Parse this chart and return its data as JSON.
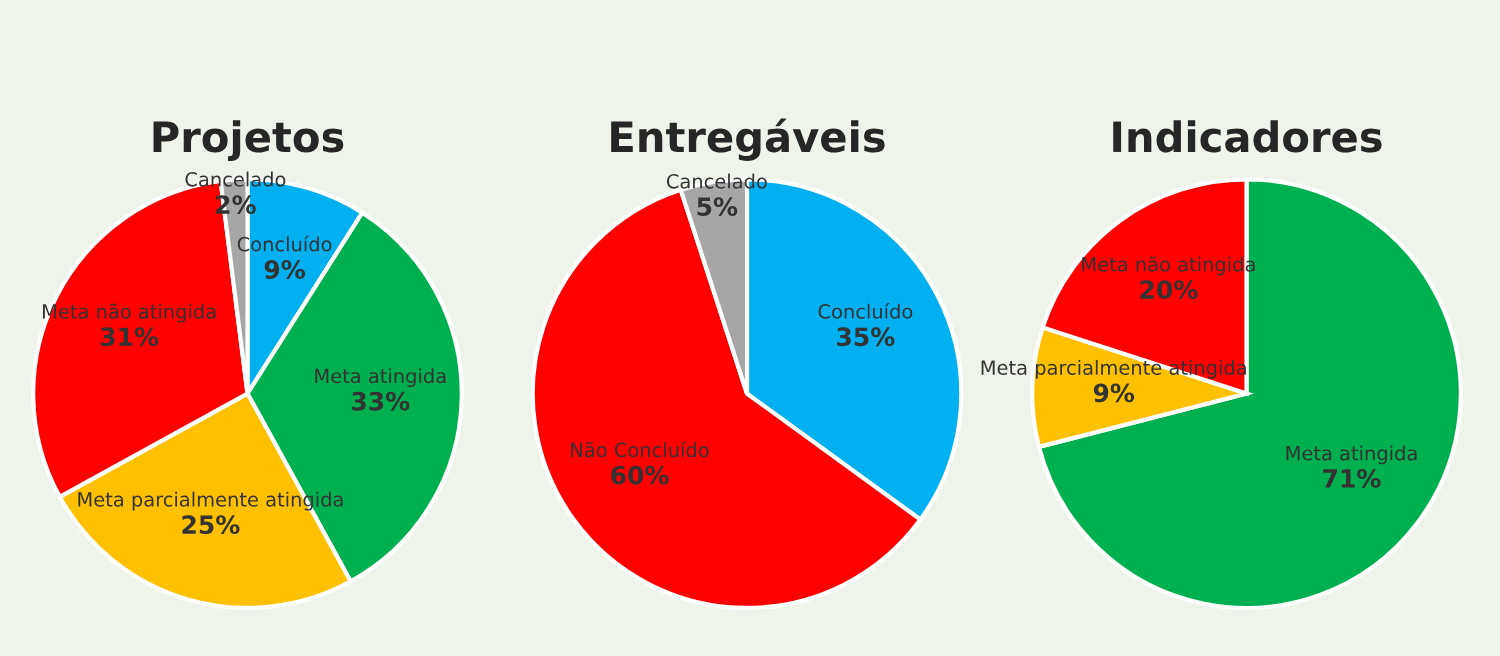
{
  "chart_data": [
    {
      "type": "pie",
      "title": "Projetos",
      "categories": [
        "Concluído",
        "Meta atingida",
        "Meta parcialmente atingida",
        "Meta não atingida",
        "Cancelado"
      ],
      "values": [
        9,
        33,
        25,
        31,
        2
      ],
      "value_labels": [
        "9%",
        "33%",
        "25%",
        "31%",
        "2%"
      ],
      "colors": [
        "#00b0f0",
        "#00b050",
        "#ffc000",
        "#ff0000",
        "#a6a6a6"
      ]
    },
    {
      "type": "pie",
      "title": "Entregáveis",
      "categories": [
        "Concluído",
        "Não Concluído",
        "Cancelado"
      ],
      "values": [
        35,
        60,
        5
      ],
      "value_labels": [
        "35%",
        "60%",
        "5%"
      ],
      "colors": [
        "#00b0f0",
        "#ff0000",
        "#a6a6a6"
      ]
    },
    {
      "type": "pie",
      "title": "Indicadores",
      "categories": [
        "Meta atingida",
        "Meta parcialmente atingida",
        "Meta não atingida"
      ],
      "values": [
        71,
        9,
        20
      ],
      "value_labels": [
        "71%",
        "9%",
        "20%"
      ],
      "colors": [
        "#00b050",
        "#ffc000",
        "#ff0000"
      ]
    }
  ]
}
